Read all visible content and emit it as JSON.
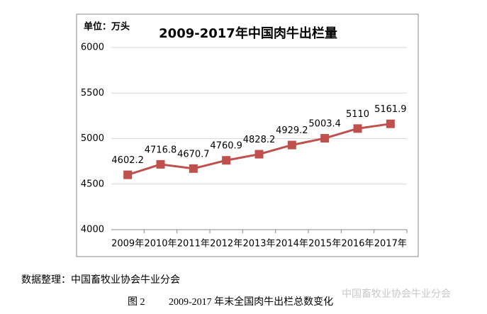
{
  "chart_data": {
    "type": "line",
    "title": "2009-2017年中国肉牛出栏量",
    "unit_label": "单位：万头",
    "categories": [
      "2009年",
      "2010年",
      "2011年",
      "2012年",
      "2013年",
      "2014年",
      "2015年",
      "2016年",
      "2017年"
    ],
    "series": [
      {
        "name": "肉牛出栏量",
        "color": "#c0504d",
        "values": [
          4602.2,
          4716.8,
          4670.7,
          4760.9,
          4828.2,
          4929.2,
          5003.4,
          5110,
          5161.9
        ]
      }
    ],
    "ylim": [
      4000,
      6000
    ],
    "yticks": [
      4000,
      4500,
      5000,
      5500,
      6000
    ],
    "grid": true
  },
  "source": "数据整理：中国畜牧业协会牛业分会",
  "figure_label": "图 2",
  "caption": "2009-2017 年末全国肉牛出栏总数变化",
  "watermark": "中国畜牧业协会牛业分会"
}
